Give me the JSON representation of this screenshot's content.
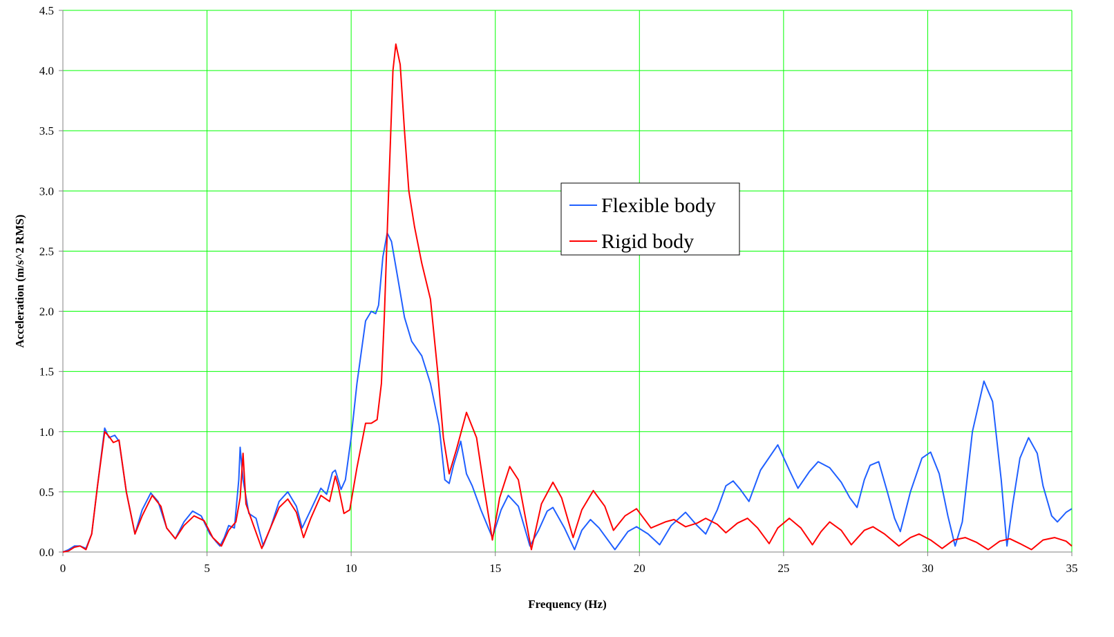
{
  "chart_data": {
    "type": "line",
    "title": "",
    "xlabel": "Frequency (Hz)",
    "ylabel": "Acceleration (m/s^2 RMS)",
    "xlim": [
      0,
      35
    ],
    "ylim": [
      0,
      4.5
    ],
    "x_ticks": [
      0,
      5,
      10,
      15,
      20,
      25,
      30,
      35
    ],
    "x_tick_labels": [
      "0",
      "5",
      "10",
      "15",
      "20",
      "25",
      "30",
      "35"
    ],
    "y_ticks": [
      0,
      0.5,
      1,
      1.5,
      2,
      2.5,
      3,
      3.5,
      4,
      4.5
    ],
    "y_tick_labels": [
      "0.0",
      "0.5",
      "1.0",
      "1.5",
      "2.0",
      "2.5",
      "3.0",
      "3.5",
      "4.0",
      "4.5"
    ],
    "grid": true,
    "grid_color": "#00ff00",
    "legend_position": "center-right",
    "series": [
      {
        "name": "Flexible body",
        "color": "#1f5fff",
        "points": [
          [
            0,
            0.0
          ],
          [
            0.2,
            0.02
          ],
          [
            0.4,
            0.05
          ],
          [
            0.6,
            0.05
          ],
          [
            0.8,
            0.03
          ],
          [
            1.0,
            0.15
          ],
          [
            1.2,
            0.55
          ],
          [
            1.45,
            1.03
          ],
          [
            1.6,
            0.95
          ],
          [
            1.8,
            0.97
          ],
          [
            1.95,
            0.92
          ],
          [
            2.2,
            0.5
          ],
          [
            2.5,
            0.15
          ],
          [
            2.75,
            0.35
          ],
          [
            3.05,
            0.49
          ],
          [
            3.3,
            0.42
          ],
          [
            3.6,
            0.2
          ],
          [
            3.9,
            0.11
          ],
          [
            4.2,
            0.25
          ],
          [
            4.5,
            0.34
          ],
          [
            4.8,
            0.3
          ],
          [
            5.1,
            0.15
          ],
          [
            5.3,
            0.09
          ],
          [
            5.45,
            0.05
          ],
          [
            5.6,
            0.12
          ],
          [
            5.75,
            0.22
          ],
          [
            5.95,
            0.2
          ],
          [
            6.1,
            0.6
          ],
          [
            6.15,
            0.87
          ],
          [
            6.25,
            0.6
          ],
          [
            6.45,
            0.32
          ],
          [
            6.7,
            0.28
          ],
          [
            6.95,
            0.05
          ],
          [
            7.2,
            0.2
          ],
          [
            7.5,
            0.42
          ],
          [
            7.8,
            0.5
          ],
          [
            8.1,
            0.38
          ],
          [
            8.3,
            0.2
          ],
          [
            8.6,
            0.35
          ],
          [
            8.95,
            0.53
          ],
          [
            9.15,
            0.48
          ],
          [
            9.35,
            0.66
          ],
          [
            9.45,
            0.68
          ],
          [
            9.65,
            0.52
          ],
          [
            9.8,
            0.6
          ],
          [
            10.0,
            0.95
          ],
          [
            10.2,
            1.4
          ],
          [
            10.5,
            1.92
          ],
          [
            10.7,
            2.0
          ],
          [
            10.85,
            1.98
          ],
          [
            10.95,
            2.05
          ],
          [
            11.1,
            2.45
          ],
          [
            11.25,
            2.65
          ],
          [
            11.4,
            2.58
          ],
          [
            11.6,
            2.3
          ],
          [
            11.85,
            1.95
          ],
          [
            12.1,
            1.75
          ],
          [
            12.45,
            1.63
          ],
          [
            12.75,
            1.4
          ],
          [
            13.05,
            1.05
          ],
          [
            13.25,
            0.6
          ],
          [
            13.4,
            0.57
          ],
          [
            13.55,
            0.72
          ],
          [
            13.8,
            0.92
          ],
          [
            14.0,
            0.65
          ],
          [
            14.2,
            0.55
          ],
          [
            14.5,
            0.35
          ],
          [
            14.9,
            0.12
          ],
          [
            15.2,
            0.35
          ],
          [
            15.45,
            0.47
          ],
          [
            15.8,
            0.38
          ],
          [
            16.2,
            0.05
          ],
          [
            16.5,
            0.18
          ],
          [
            16.8,
            0.34
          ],
          [
            17.0,
            0.37
          ],
          [
            17.4,
            0.2
          ],
          [
            17.75,
            0.02
          ],
          [
            18.0,
            0.18
          ],
          [
            18.3,
            0.27
          ],
          [
            18.6,
            0.2
          ],
          [
            19.15,
            0.02
          ],
          [
            19.6,
            0.17
          ],
          [
            19.9,
            0.21
          ],
          [
            20.3,
            0.15
          ],
          [
            20.7,
            0.06
          ],
          [
            21.1,
            0.22
          ],
          [
            21.6,
            0.33
          ],
          [
            22.0,
            0.22
          ],
          [
            22.3,
            0.15
          ],
          [
            22.7,
            0.35
          ],
          [
            23.0,
            0.55
          ],
          [
            23.25,
            0.59
          ],
          [
            23.5,
            0.52
          ],
          [
            23.8,
            0.42
          ],
          [
            24.2,
            0.68
          ],
          [
            24.8,
            0.89
          ],
          [
            25.2,
            0.68
          ],
          [
            25.5,
            0.53
          ],
          [
            25.9,
            0.67
          ],
          [
            26.2,
            0.75
          ],
          [
            26.6,
            0.7
          ],
          [
            27.0,
            0.58
          ],
          [
            27.3,
            0.45
          ],
          [
            27.55,
            0.37
          ],
          [
            27.8,
            0.6
          ],
          [
            28.0,
            0.72
          ],
          [
            28.3,
            0.75
          ],
          [
            28.6,
            0.5
          ],
          [
            28.85,
            0.28
          ],
          [
            29.05,
            0.17
          ],
          [
            29.4,
            0.5
          ],
          [
            29.8,
            0.78
          ],
          [
            30.1,
            0.83
          ],
          [
            30.4,
            0.65
          ],
          [
            30.7,
            0.3
          ],
          [
            30.95,
            0.05
          ],
          [
            31.2,
            0.25
          ],
          [
            31.55,
            1.0
          ],
          [
            31.95,
            1.42
          ],
          [
            32.25,
            1.25
          ],
          [
            32.55,
            0.6
          ],
          [
            32.75,
            0.05
          ],
          [
            32.95,
            0.4
          ],
          [
            33.2,
            0.78
          ],
          [
            33.5,
            0.95
          ],
          [
            33.8,
            0.82
          ],
          [
            34.0,
            0.55
          ],
          [
            34.3,
            0.3
          ],
          [
            34.5,
            0.25
          ],
          [
            34.8,
            0.33
          ],
          [
            35,
            0.36
          ]
        ]
      },
      {
        "name": "Rigid body",
        "color": "#ff0000",
        "points": [
          [
            0,
            0.0
          ],
          [
            0.2,
            0.01
          ],
          [
            0.4,
            0.04
          ],
          [
            0.6,
            0.05
          ],
          [
            0.8,
            0.02
          ],
          [
            1.0,
            0.15
          ],
          [
            1.2,
            0.55
          ],
          [
            1.45,
            1.0
          ],
          [
            1.6,
            0.96
          ],
          [
            1.75,
            0.91
          ],
          [
            1.95,
            0.93
          ],
          [
            2.2,
            0.5
          ],
          [
            2.5,
            0.15
          ],
          [
            2.75,
            0.3
          ],
          [
            3.1,
            0.47
          ],
          [
            3.4,
            0.38
          ],
          [
            3.6,
            0.2
          ],
          [
            3.9,
            0.11
          ],
          [
            4.2,
            0.22
          ],
          [
            4.55,
            0.3
          ],
          [
            4.9,
            0.26
          ],
          [
            5.2,
            0.12
          ],
          [
            5.5,
            0.05
          ],
          [
            5.75,
            0.18
          ],
          [
            6.0,
            0.25
          ],
          [
            6.15,
            0.45
          ],
          [
            6.25,
            0.82
          ],
          [
            6.35,
            0.4
          ],
          [
            6.6,
            0.23
          ],
          [
            6.9,
            0.03
          ],
          [
            7.2,
            0.2
          ],
          [
            7.5,
            0.37
          ],
          [
            7.8,
            0.44
          ],
          [
            8.1,
            0.33
          ],
          [
            8.35,
            0.12
          ],
          [
            8.6,
            0.28
          ],
          [
            8.95,
            0.47
          ],
          [
            9.25,
            0.42
          ],
          [
            9.45,
            0.63
          ],
          [
            9.55,
            0.55
          ],
          [
            9.75,
            0.32
          ],
          [
            9.95,
            0.35
          ],
          [
            10.2,
            0.7
          ],
          [
            10.5,
            1.07
          ],
          [
            10.7,
            1.07
          ],
          [
            10.9,
            1.1
          ],
          [
            11.05,
            1.4
          ],
          [
            11.15,
            1.95
          ],
          [
            11.3,
            3.0
          ],
          [
            11.45,
            4.0
          ],
          [
            11.55,
            4.22
          ],
          [
            11.7,
            4.05
          ],
          [
            11.85,
            3.5
          ],
          [
            12.0,
            3.0
          ],
          [
            12.2,
            2.7
          ],
          [
            12.45,
            2.4
          ],
          [
            12.75,
            2.1
          ],
          [
            13.0,
            1.5
          ],
          [
            13.2,
            0.95
          ],
          [
            13.4,
            0.65
          ],
          [
            13.65,
            0.85
          ],
          [
            14.0,
            1.16
          ],
          [
            14.35,
            0.95
          ],
          [
            14.6,
            0.55
          ],
          [
            14.9,
            0.1
          ],
          [
            15.15,
            0.45
          ],
          [
            15.5,
            0.71
          ],
          [
            15.8,
            0.6
          ],
          [
            16.25,
            0.02
          ],
          [
            16.6,
            0.4
          ],
          [
            17.0,
            0.58
          ],
          [
            17.3,
            0.45
          ],
          [
            17.7,
            0.12
          ],
          [
            18.0,
            0.35
          ],
          [
            18.4,
            0.51
          ],
          [
            18.8,
            0.38
          ],
          [
            19.1,
            0.18
          ],
          [
            19.5,
            0.3
          ],
          [
            19.9,
            0.36
          ],
          [
            20.4,
            0.2
          ],
          [
            20.9,
            0.25
          ],
          [
            21.2,
            0.27
          ],
          [
            21.6,
            0.21
          ],
          [
            22.0,
            0.24
          ],
          [
            22.3,
            0.28
          ],
          [
            22.7,
            0.23
          ],
          [
            23.0,
            0.16
          ],
          [
            23.4,
            0.24
          ],
          [
            23.75,
            0.28
          ],
          [
            24.1,
            0.2
          ],
          [
            24.5,
            0.07
          ],
          [
            24.8,
            0.2
          ],
          [
            25.2,
            0.28
          ],
          [
            25.6,
            0.2
          ],
          [
            26.0,
            0.06
          ],
          [
            26.3,
            0.17
          ],
          [
            26.6,
            0.25
          ],
          [
            27.0,
            0.18
          ],
          [
            27.35,
            0.06
          ],
          [
            27.8,
            0.18
          ],
          [
            28.1,
            0.21
          ],
          [
            28.5,
            0.15
          ],
          [
            29.0,
            0.05
          ],
          [
            29.4,
            0.12
          ],
          [
            29.7,
            0.15
          ],
          [
            30.1,
            0.1
          ],
          [
            30.5,
            0.03
          ],
          [
            30.9,
            0.1
          ],
          [
            31.3,
            0.12
          ],
          [
            31.7,
            0.08
          ],
          [
            32.1,
            0.02
          ],
          [
            32.5,
            0.09
          ],
          [
            32.85,
            0.11
          ],
          [
            33.2,
            0.07
          ],
          [
            33.6,
            0.02
          ],
          [
            34.0,
            0.1
          ],
          [
            34.4,
            0.12
          ],
          [
            34.8,
            0.09
          ],
          [
            35,
            0.05
          ]
        ]
      }
    ]
  }
}
